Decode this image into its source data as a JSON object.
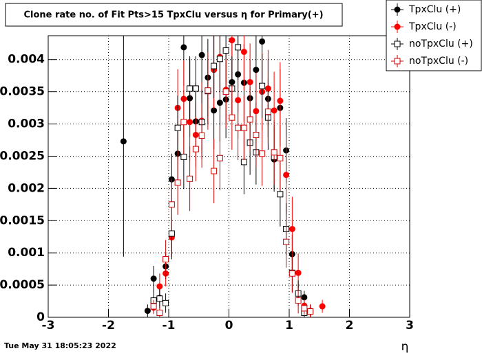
{
  "chart_data": {
    "type": "scatter",
    "title": "Clone rate no. of Fit Pts>15 TpxClu versus η for Primary(+)",
    "x_label": "η",
    "timestamp": "Tue May 31 18:05:23 2022",
    "xlim": [
      -3,
      3
    ],
    "ylim": [
      0,
      0.00437
    ],
    "xticks": [
      -3,
      -2,
      -1,
      0,
      1,
      2,
      3
    ],
    "yticks": [
      0,
      0.0005,
      0.001,
      0.0015,
      0.002,
      0.0025,
      0.003,
      0.0035,
      0.004
    ],
    "grid": true,
    "legend": "top-right",
    "series": [
      {
        "name": "TpxClu (+)",
        "color": "#000000",
        "marker": "circle",
        "filled": true,
        "x": [
          -1.75,
          -1.35,
          -1.25,
          -1.15,
          -1.05,
          -0.95,
          -0.85,
          -0.75,
          -0.65,
          -0.55,
          -0.45,
          -0.35,
          -0.25,
          -0.15,
          -0.05,
          0.05,
          0.15,
          0.25,
          0.35,
          0.45,
          0.55,
          0.65,
          0.75,
          0.85,
          0.95,
          1.05,
          1.15,
          1.25,
          1.35
        ],
        "values": [
          0.00273,
          0.0001,
          0.0006,
          0.0003,
          0.00079,
          0.00214,
          0.00254,
          0.00419,
          0.0034,
          0.00304,
          0.00407,
          0.00372,
          0.00321,
          0.00333,
          0.00338,
          0.00365,
          0.00377,
          0.00364,
          0.0034,
          0.00384,
          0.00428,
          0.00339,
          0.00245,
          0.00325,
          0.00259,
          0.00098,
          0.00037,
          0.00031,
          0.0001
        ],
        "errors": [
          0.00179,
          0.0001,
          0.0002,
          0.00015,
          0.0002,
          0.0004,
          0.0005,
          0.0006,
          0.0006,
          0.0006,
          0.0006,
          0.0006,
          0.0006,
          0.0006,
          0.0006,
          0.0006,
          0.0006,
          0.0006,
          0.0006,
          0.0006,
          0.0006,
          0.0006,
          0.0005,
          0.0006,
          0.0005,
          0.0003,
          0.00015,
          0.0001,
          0.0001
        ]
      },
      {
        "name": "TpxClu (-)",
        "color": "#ff0000",
        "marker": "circle",
        "filled": true,
        "x": [
          -1.25,
          -1.15,
          -1.05,
          -0.95,
          -0.85,
          -0.75,
          -0.65,
          -0.55,
          -0.45,
          -0.35,
          -0.25,
          -0.15,
          -0.05,
          0.05,
          0.15,
          0.25,
          0.35,
          0.45,
          0.55,
          0.65,
          0.75,
          0.85,
          0.95,
          1.05,
          1.15,
          1.25,
          1.35,
          1.55
        ],
        "values": [
          0.00015,
          0.00048,
          0.00068,
          0.00124,
          0.00325,
          0.00339,
          0.00303,
          0.00283,
          0.00305,
          0.00351,
          0.00384,
          0.00404,
          0.00353,
          0.0043,
          0.00337,
          0.00412,
          0.00365,
          0.0032,
          0.0035,
          0.00355,
          0.00321,
          0.00336,
          0.00221,
          0.00137,
          0.00069,
          0.00018,
          0.0001,
          0.00017
        ],
        "errors": [
          0.0001,
          0.0002,
          0.0002,
          0.0003,
          0.0006,
          0.0006,
          0.0006,
          0.0005,
          0.0006,
          0.0006,
          0.0006,
          0.0006,
          0.0006,
          0.0006,
          0.0006,
          0.0006,
          0.0006,
          0.0006,
          0.0006,
          0.0006,
          0.0006,
          0.0006,
          0.0006,
          0.0005,
          0.0003,
          0.0001,
          0.0001,
          0.0001
        ]
      },
      {
        "name": "noTpxClu (+)",
        "color": "#000000",
        "marker": "square",
        "filled": false,
        "x": [
          -1.25,
          -1.15,
          -1.05,
          -0.95,
          -0.85,
          -0.75,
          -0.65,
          -0.55,
          -0.45,
          -0.35,
          -0.25,
          -0.15,
          -0.05,
          0.05,
          0.15,
          0.25,
          0.35,
          0.45,
          0.55,
          0.65,
          0.75,
          0.85,
          0.95,
          1.05,
          1.15,
          1.25,
          1.35
        ],
        "values": [
          0.00026,
          0.00029,
          0.00022,
          0.0013,
          0.00294,
          0.00249,
          0.00355,
          0.00355,
          0.00303,
          0.00351,
          0.0039,
          0.00401,
          0.00414,
          0.00355,
          0.00419,
          0.00241,
          0.00271,
          0.00256,
          0.00359,
          0.0031,
          0.00249,
          0.00191,
          0.00137,
          0.00069,
          0.00037,
          7e-05,
          9e-05
        ],
        "errors": [
          0.00015,
          0.00015,
          0.00015,
          0.0004,
          0.0005,
          0.0005,
          0.0005,
          0.0005,
          0.0005,
          0.0005,
          0.0005,
          0.0005,
          0.0005,
          0.0005,
          0.0005,
          0.0005,
          0.0005,
          0.0005,
          0.0005,
          0.0005,
          0.0005,
          0.0005,
          0.0004,
          0.0003,
          0.0002,
          0.0001,
          0.0001
        ]
      },
      {
        "name": "noTpxClu (-)",
        "color": "#cc0000",
        "marker": "square",
        "filled": false,
        "x": [
          -1.25,
          -1.15,
          -1.05,
          -0.95,
          -0.85,
          -0.75,
          -0.65,
          -0.55,
          -0.45,
          -0.35,
          -0.25,
          -0.15,
          -0.05,
          0.05,
          0.15,
          0.25,
          0.35,
          0.45,
          0.55,
          0.65,
          0.75,
          0.85,
          0.95,
          1.05,
          1.15,
          1.25,
          1.35
        ],
        "values": [
          0.00017,
          7e-05,
          0.0009,
          0.00175,
          0.00209,
          0.00303,
          0.00215,
          0.00261,
          0.00282,
          0.00352,
          0.00227,
          0.00247,
          0.0035,
          0.0031,
          0.00294,
          0.00294,
          0.00307,
          0.00283,
          0.00254,
          0.00319,
          0.00256,
          0.00247,
          0.00117,
          0.00068,
          0.00026,
          0.00014,
          9e-05
        ],
        "errors": [
          0.0001,
          0.0001,
          0.0003,
          0.0004,
          0.0005,
          0.0005,
          0.0005,
          0.0005,
          0.0005,
          0.0005,
          0.0005,
          0.0005,
          0.0005,
          0.0005,
          0.0005,
          0.0005,
          0.0005,
          0.0005,
          0.0005,
          0.0005,
          0.0005,
          0.0005,
          0.0004,
          0.0003,
          0.0002,
          0.0001,
          0.0001
        ]
      }
    ]
  }
}
